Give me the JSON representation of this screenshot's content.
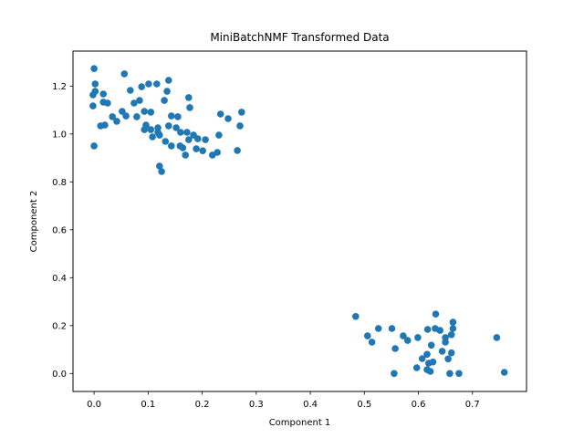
{
  "figure": {
    "background_color": "#ffffff"
  },
  "chart_data": {
    "type": "scatter",
    "title": "MiniBatchNMF Transformed Data",
    "xlabel": "Component 1",
    "ylabel": "Component 2",
    "marker_color": "#1f77b4",
    "axis_color": "#000000",
    "grid": false,
    "legend": null,
    "xlim": [
      -0.039,
      0.8
    ],
    "ylim": [
      -0.075,
      1.346
    ],
    "x_ticks": [
      0.0,
      0.1,
      0.2,
      0.3,
      0.4,
      0.5,
      0.6,
      0.7
    ],
    "x_tick_labels": [
      "0.0",
      "0.1",
      "0.2",
      "0.3",
      "0.4",
      "0.5",
      "0.6",
      "0.7"
    ],
    "y_ticks": [
      0.0,
      0.2,
      0.4,
      0.6,
      0.8,
      1.0,
      1.2
    ],
    "y_tick_labels": [
      "0.0",
      "0.2",
      "0.4",
      "0.6",
      "0.8",
      "1.0",
      "1.2"
    ],
    "points": [
      [
        0.0,
        1.273
      ],
      [
        0.002,
        1.209
      ],
      [
        0.002,
        1.178
      ],
      [
        -0.002,
        1.163
      ],
      [
        -0.002,
        1.117
      ],
      [
        0.0,
        0.95
      ],
      [
        0.017,
        1.167
      ],
      [
        0.017,
        1.133
      ],
      [
        0.025,
        1.129
      ],
      [
        0.012,
        1.034
      ],
      [
        0.02,
        1.037
      ],
      [
        0.034,
        1.072
      ],
      [
        0.042,
        1.053
      ],
      [
        0.056,
        1.251
      ],
      [
        0.052,
        1.094
      ],
      [
        0.059,
        1.075
      ],
      [
        0.067,
        1.182
      ],
      [
        0.074,
        1.129
      ],
      [
        0.084,
        1.14
      ],
      [
        0.088,
        1.197
      ],
      [
        0.101,
        1.209
      ],
      [
        0.116,
        1.209
      ],
      [
        0.079,
        1.072
      ],
      [
        0.093,
        1.094
      ],
      [
        0.105,
        1.091
      ],
      [
        0.096,
        1.037
      ],
      [
        0.093,
        1.018
      ],
      [
        0.105,
        1.018
      ],
      [
        0.118,
        1.026
      ],
      [
        0.121,
        0.995
      ],
      [
        0.108,
        0.988
      ],
      [
        0.132,
        0.969
      ],
      [
        0.143,
        0.95
      ],
      [
        0.118,
        1.007
      ],
      [
        0.159,
        0.95
      ],
      [
        0.16,
        1.007
      ],
      [
        0.169,
        0.912
      ],
      [
        0.138,
        1.224
      ],
      [
        0.135,
        1.178
      ],
      [
        0.13,
        1.14
      ],
      [
        0.143,
        1.075
      ],
      [
        0.155,
        1.072
      ],
      [
        0.138,
        1.034
      ],
      [
        0.152,
        1.026
      ],
      [
        0.172,
        1.007
      ],
      [
        0.175,
        1.152
      ],
      [
        0.177,
        1.11
      ],
      [
        0.184,
        0.995
      ],
      [
        0.175,
        0.976
      ],
      [
        0.192,
        0.98
      ],
      [
        0.206,
        0.976
      ],
      [
        0.164,
        0.942
      ],
      [
        0.189,
        0.938
      ],
      [
        0.201,
        0.93
      ],
      [
        0.219,
        0.912
      ],
      [
        0.234,
        1.083
      ],
      [
        0.248,
        1.064
      ],
      [
        0.273,
        1.091
      ],
      [
        0.27,
        1.034
      ],
      [
        0.231,
        0.995
      ],
      [
        0.228,
        0.923
      ],
      [
        0.265,
        0.931
      ],
      [
        0.121,
        0.866
      ],
      [
        0.125,
        0.843
      ],
      [
        0.484,
        0.238
      ],
      [
        0.526,
        0.188
      ],
      [
        0.506,
        0.157
      ],
      [
        0.514,
        0.131
      ],
      [
        0.551,
        0.188
      ],
      [
        0.557,
        0.104
      ],
      [
        0.572,
        0.157
      ],
      [
        0.58,
        0.138
      ],
      [
        0.599,
        0.15
      ],
      [
        0.607,
        0.062
      ],
      [
        0.597,
        0.024
      ],
      [
        0.555,
        0.0
      ],
      [
        0.619,
        0.043
      ],
      [
        0.622,
        0.009
      ],
      [
        0.632,
        0.248
      ],
      [
        0.617,
        0.184
      ],
      [
        0.631,
        0.188
      ],
      [
        0.64,
        0.18
      ],
      [
        0.664,
        0.188
      ],
      [
        0.664,
        0.214
      ],
      [
        0.65,
        0.15
      ],
      [
        0.661,
        0.162
      ],
      [
        0.624,
        0.118
      ],
      [
        0.65,
        0.131
      ],
      [
        0.644,
        0.093
      ],
      [
        0.661,
        0.086
      ],
      [
        0.616,
        0.08
      ],
      [
        0.627,
        0.048
      ],
      [
        0.616,
        0.016
      ],
      [
        0.655,
        0.061
      ],
      [
        0.658,
        0.0
      ],
      [
        0.675,
        0.0
      ],
      [
        0.745,
        0.15
      ],
      [
        0.759,
        0.005
      ]
    ]
  }
}
